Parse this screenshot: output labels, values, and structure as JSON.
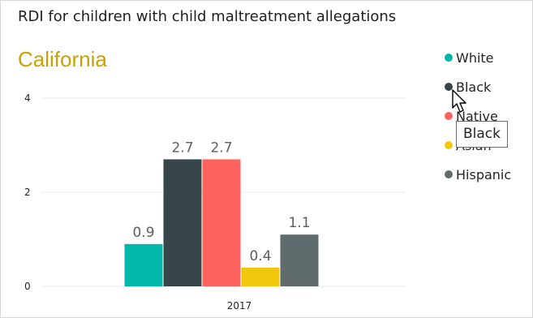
{
  "chart_data": {
    "type": "bar",
    "title": "RDI for children with child maltreatment allegations",
    "subtitle": "California",
    "categories": [
      "2017"
    ],
    "series": [
      {
        "name": "White",
        "values": [
          0.9
        ],
        "color": "#01b8aa",
        "label": "0.9"
      },
      {
        "name": "Black",
        "values": [
          2.7
        ],
        "color": "#374649",
        "label": "2.7"
      },
      {
        "name": "Native",
        "values": [
          2.7
        ],
        "color": "#fd625e",
        "label": "2.7"
      },
      {
        "name": "Asian",
        "values": [
          0.4
        ],
        "color": "#f2c80f",
        "label": "0.4"
      },
      {
        "name": "Hispanic",
        "values": [
          1.1
        ],
        "color": "#5f6b6d",
        "label": "1.1"
      }
    ],
    "ylim": [
      0,
      4
    ],
    "yticks": [
      "0",
      "2",
      "4"
    ],
    "legend": {
      "position": "top-right",
      "labels": [
        "White",
        "Black",
        "Native",
        "Asian",
        "Hispanic"
      ]
    },
    "grid": true
  },
  "tooltip": {
    "text": "Black"
  },
  "cursor": {
    "icon": "mouse-pointer-icon"
  }
}
